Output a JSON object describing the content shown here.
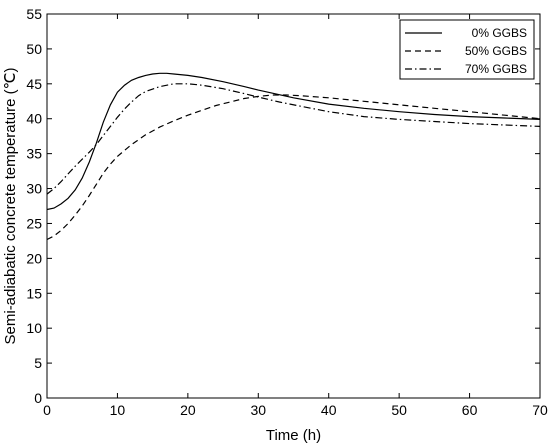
{
  "chart_data": {
    "type": "line",
    "title": "",
    "xlabel": "Time (h)",
    "ylabel": "Semi-adiabatic concrete temperature (℃)",
    "xlim": [
      0,
      70
    ],
    "ylim": [
      0,
      55
    ],
    "xticks": [
      0,
      10,
      20,
      30,
      40,
      50,
      60,
      70
    ],
    "yticks": [
      0,
      5,
      10,
      15,
      20,
      25,
      30,
      35,
      40,
      45,
      50,
      55
    ],
    "grid": false,
    "legend_position": "top-right",
    "series": [
      {
        "name": "0% GGBS",
        "line_style": "solid",
        "x": [
          0,
          1,
          2,
          3,
          4,
          5,
          6,
          7,
          8,
          9,
          10,
          11,
          12,
          13,
          14,
          15,
          16,
          17,
          18,
          20,
          22,
          25,
          28,
          30,
          35,
          40,
          45,
          50,
          55,
          60,
          65,
          70
        ],
        "y": [
          27.0,
          27.2,
          27.8,
          28.6,
          29.8,
          31.5,
          33.8,
          36.5,
          39.5,
          42.0,
          43.8,
          44.8,
          45.5,
          45.9,
          46.2,
          46.4,
          46.5,
          46.5,
          46.4,
          46.2,
          45.9,
          45.3,
          44.6,
          44.1,
          43.0,
          42.1,
          41.5,
          41.0,
          40.6,
          40.3,
          40.1,
          39.9
        ]
      },
      {
        "name": "50% GGBS",
        "line_style": "dashed",
        "x": [
          0,
          1,
          2,
          3,
          4,
          5,
          6,
          7,
          8,
          9,
          10,
          12,
          14,
          16,
          18,
          20,
          22,
          24,
          26,
          28,
          30,
          32,
          34,
          36,
          40,
          45,
          50,
          55,
          60,
          65,
          70
        ],
        "y": [
          22.7,
          23.2,
          24.0,
          25.0,
          26.2,
          27.5,
          29.0,
          30.6,
          32.2,
          33.5,
          34.6,
          36.3,
          37.7,
          38.8,
          39.7,
          40.5,
          41.2,
          41.9,
          42.4,
          42.9,
          43.2,
          43.4,
          43.4,
          43.3,
          43.0,
          42.5,
          42.0,
          41.5,
          41.0,
          40.5,
          40.0
        ]
      },
      {
        "name": "70% GGBS",
        "line_style": "dash-dot",
        "x": [
          0,
          1,
          2,
          3,
          4,
          5,
          6,
          7,
          8,
          9,
          10,
          11,
          12,
          13,
          14,
          16,
          18,
          20,
          22,
          25,
          28,
          30,
          33,
          36,
          40,
          45,
          50,
          55,
          60,
          65,
          70
        ],
        "y": [
          29.2,
          30.0,
          31.0,
          32.1,
          33.2,
          34.2,
          35.2,
          36.3,
          37.6,
          38.9,
          40.2,
          41.4,
          42.4,
          43.3,
          43.9,
          44.6,
          45.0,
          45.0,
          44.8,
          44.3,
          43.6,
          43.1,
          42.4,
          41.8,
          41.0,
          40.3,
          39.9,
          39.6,
          39.3,
          39.1,
          38.9
        ]
      }
    ]
  }
}
